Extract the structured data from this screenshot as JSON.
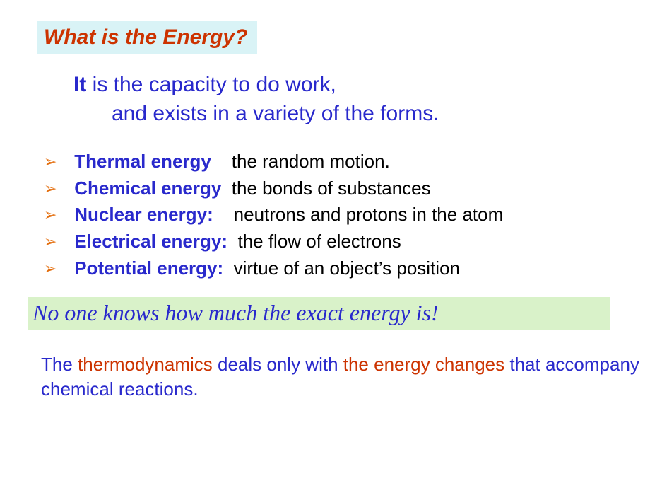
{
  "colors": {
    "title_bg": "#d9f3f6",
    "title_text": "#cc3300",
    "body_blue": "#2929cc",
    "body_black": "#000000",
    "marker": "#e36c0a",
    "callout_bg": "#d9f2c9",
    "red_accent": "#cc3300",
    "page_bg": "#ffffff"
  },
  "fonts": {
    "body": "Arial",
    "callout": "Comic Sans MS",
    "title_size_pt": 22,
    "intro_size_pt": 22,
    "list_size_pt": 20,
    "callout_size_pt": 24,
    "footer_size_pt": 20
  },
  "title": "What is the Energy?",
  "intro": {
    "it": "It",
    "line1_rest": " is the capacity to do work,",
    "line2": "and exists in a variety of the forms."
  },
  "list": [
    {
      "term": "Thermal energy",
      "gap": "    ",
      "desc": "the random motion."
    },
    {
      "term": "Chemical energy",
      "gap": "  ",
      "desc": "the bonds of substances"
    },
    {
      "term": "Nuclear energy:",
      "gap": "    ",
      "desc": "neutrons and protons in the atom"
    },
    {
      "term": "Electrical energy:",
      "gap": "  ",
      "desc": "the flow of electrons"
    },
    {
      "term": "Potential energy:",
      "gap": "  ",
      "desc": "virtue of an object’s position"
    }
  ],
  "marker_glyph": "➢",
  "callout": "No one knows how much the exact energy is!",
  "footer": {
    "p1": "The ",
    "p2_red": "thermodynamics",
    "p3": " deals only with ",
    "p4_red": "the energy changes",
    "p5": " that accompany chemical reactions."
  }
}
